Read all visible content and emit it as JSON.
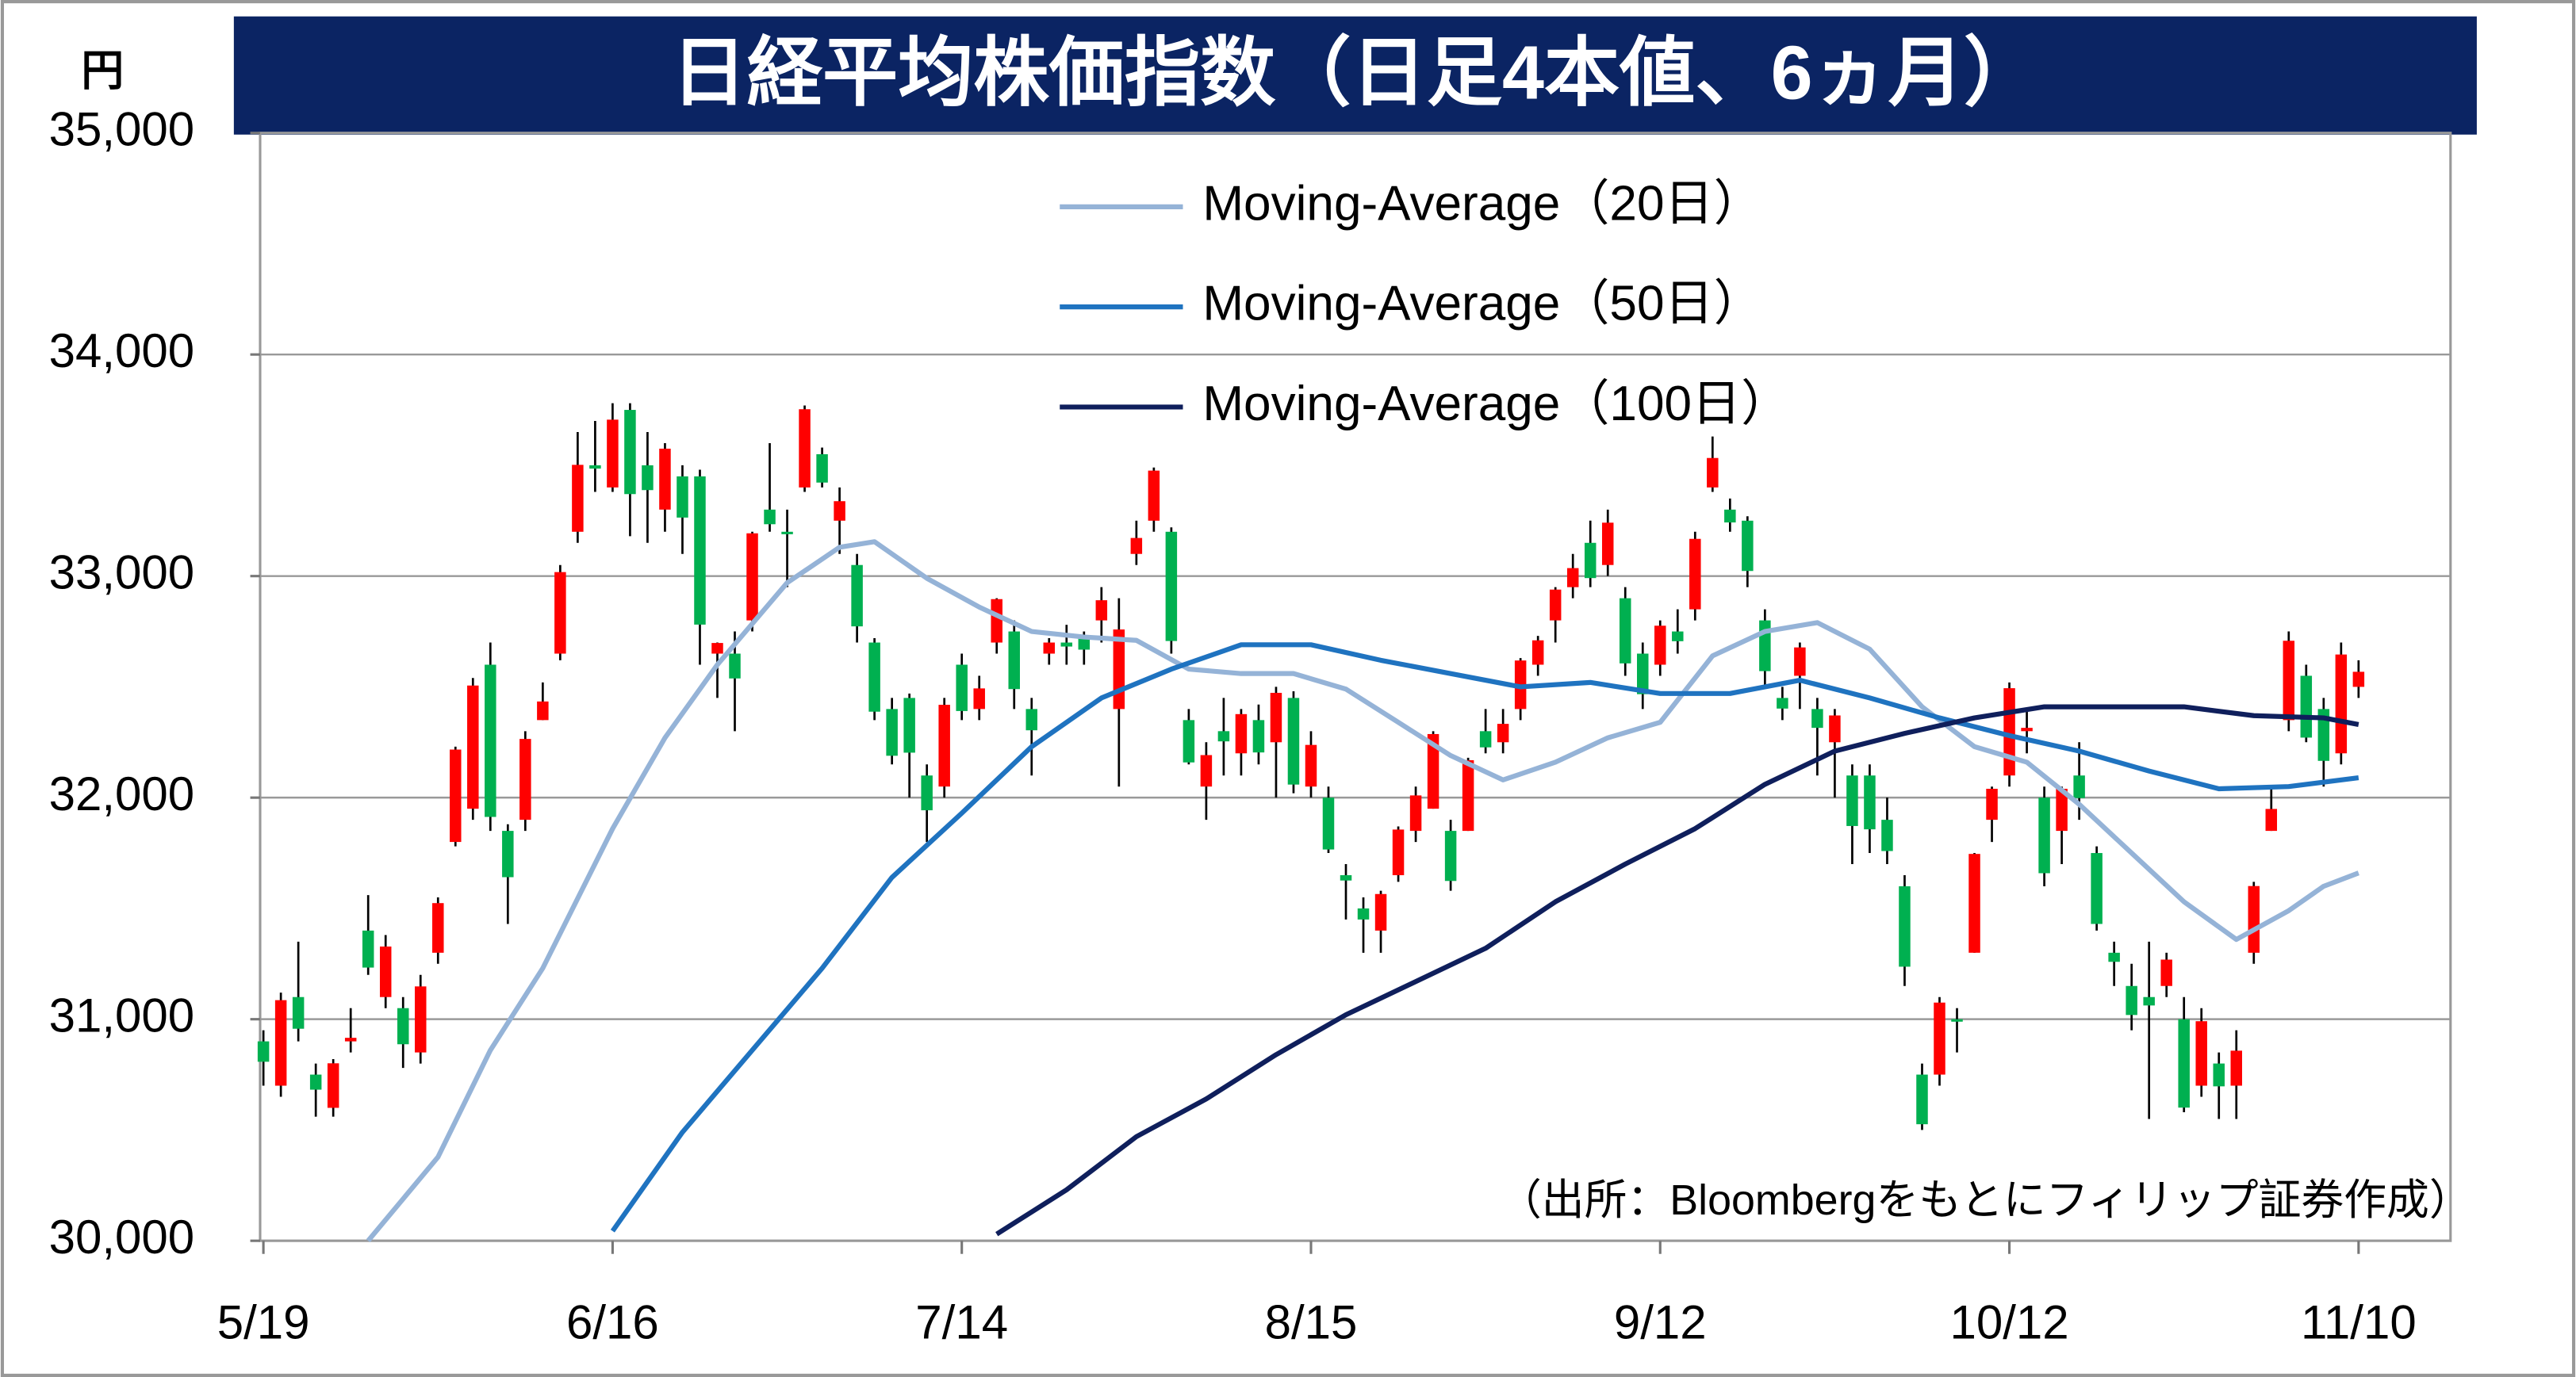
{
  "chart_data": {
    "type": "candlestick",
    "title": "日経平均株価指数（日足4本値、6ヵ月）",
    "unit_label": "円",
    "source": "（出所：Bloombergをもとにフィリップ証券作成）",
    "categories": [
      "5/19",
      null,
      null,
      null,
      null,
      null,
      null,
      null,
      null,
      null,
      null,
      null,
      null,
      null,
      null,
      null,
      null,
      null,
      null,
      null,
      "6/16",
      null,
      null,
      null,
      null,
      null,
      null,
      null,
      null,
      null,
      null,
      null,
      null,
      null,
      null,
      null,
      null,
      null,
      null,
      null,
      "7/14",
      null,
      null,
      null,
      null,
      null,
      null,
      null,
      null,
      null,
      null,
      null,
      null,
      null,
      null,
      null,
      null,
      null,
      null,
      null,
      "8/15",
      null,
      null,
      null,
      null,
      null,
      null,
      null,
      null,
      null,
      null,
      null,
      null,
      null,
      null,
      null,
      null,
      null,
      null,
      null,
      "9/12",
      null,
      null,
      null,
      null,
      null,
      null,
      null,
      null,
      null,
      null,
      null,
      null,
      null,
      null,
      null,
      null,
      null,
      null,
      null,
      "10/12",
      null,
      null,
      null,
      null,
      null,
      null,
      null,
      null,
      null,
      null,
      null,
      null,
      null,
      null,
      null,
      null,
      null,
      null,
      null,
      "11/10"
    ],
    "open": [
      30900,
      30700,
      31100,
      30750,
      30600,
      30900,
      31400,
      31100,
      31050,
      30850,
      31300,
      31800,
      31950,
      32600,
      31850,
      31900,
      32350,
      32650,
      33200,
      33500,
      33400,
      33750,
      33500,
      33300,
      33450,
      33450,
      32650,
      32650,
      32800,
      33300,
      33200,
      33400,
      33550,
      33250,
      33050,
      32700,
      32400,
      32450,
      32100,
      32050,
      32600,
      32400,
      32700,
      32750,
      32400,
      32650,
      32700,
      32720,
      32800,
      32400,
      33100,
      33250,
      33200,
      32350,
      32050,
      32300,
      32200,
      32350,
      32250,
      32450,
      32050,
      32000,
      31650,
      31500,
      31400,
      31650,
      31850,
      31950,
      31850,
      31850,
      32300,
      32250,
      32400,
      32600,
      32800,
      32950,
      33150,
      33050,
      32900,
      32650,
      32600,
      32750,
      32850,
      33400,
      33300,
      33250,
      32800,
      32450,
      32550,
      32400,
      32250,
      32100,
      32100,
      31900,
      31600,
      30750,
      30750,
      31000,
      31300,
      31900,
      32100,
      32300,
      32000,
      31850,
      32100,
      31750,
      31300,
      31150,
      31100,
      31150,
      31000,
      30700,
      30800,
      30700,
      31300,
      31850,
      32350,
      32550,
      32400,
      32200,
      32500
    ],
    "high": [
      30950,
      31120,
      31350,
      30800,
      30820,
      31050,
      31560,
      31380,
      31100,
      31200,
      31550,
      32230,
      32540,
      32700,
      31880,
      32300,
      32520,
      33050,
      33650,
      33700,
      33780,
      33780,
      33650,
      33600,
      33500,
      33480,
      32700,
      32750,
      33200,
      33600,
      33300,
      33770,
      33580,
      33400,
      33100,
      32720,
      32450,
      32470,
      32150,
      32450,
      32650,
      32550,
      32900,
      32800,
      32450,
      32720,
      32780,
      32750,
      32950,
      32900,
      33250,
      33490,
      33220,
      32400,
      32250,
      32450,
      32400,
      32420,
      32500,
      32480,
      32300,
      32050,
      31700,
      31550,
      31580,
      31870,
      32050,
      32300,
      31900,
      32180,
      32400,
      32400,
      32630,
      32730,
      32950,
      33100,
      33250,
      33300,
      32950,
      32700,
      32800,
      32850,
      33200,
      33630,
      33350,
      33270,
      32850,
      32500,
      32700,
      32450,
      32400,
      32150,
      32150,
      32000,
      31650,
      30800,
      31100,
      31050,
      31750,
      32050,
      32520,
      32400,
      32050,
      32050,
      32250,
      31780,
      31350,
      31250,
      31350,
      31300,
      31100,
      31050,
      30850,
      30950,
      31620,
      32050,
      32750,
      32600,
      32450,
      32700,
      32620
    ],
    "low": [
      30700,
      30650,
      30900,
      30560,
      30560,
      30850,
      31200,
      31050,
      30780,
      30800,
      31250,
      31780,
      31900,
      31850,
      31430,
      31850,
      32350,
      32620,
      33150,
      33380,
      33380,
      33180,
      33150,
      33200,
      33100,
      32600,
      32450,
      32300,
      32750,
      33200,
      32950,
      33380,
      33400,
      33100,
      32700,
      32350,
      32150,
      32000,
      31800,
      32000,
      32350,
      32350,
      32650,
      32400,
      32100,
      32600,
      32600,
      32600,
      32700,
      32050,
      33050,
      33200,
      32650,
      32150,
      31900,
      32100,
      32100,
      32150,
      32000,
      32020,
      32000,
      31750,
      31450,
      31300,
      31300,
      31620,
      31800,
      31950,
      31580,
      31850,
      32200,
      32200,
      32350,
      32550,
      32700,
      32900,
      32950,
      33000,
      32550,
      32400,
      32550,
      32650,
      32800,
      33380,
      33200,
      32950,
      32500,
      32350,
      32400,
      32100,
      32000,
      31700,
      31750,
      31700,
      31150,
      30500,
      30700,
      30850,
      31300,
      31800,
      32050,
      32200,
      31600,
      31700,
      31900,
      31400,
      31150,
      30950,
      30550,
      31100,
      30580,
      30650,
      30550,
      30550,
      31250,
      31850,
      32300,
      32250,
      32050,
      32150,
      32450
    ],
    "close": [
      30808,
      31086,
      30957,
      30682,
      30801,
      30916,
      31233,
      31328,
      30887,
      31148,
      31524,
      32217,
      32506,
      31913,
      31641,
      32265,
      32434,
      33018,
      33502,
      33485,
      33706,
      33370,
      33388,
      33575,
      33264,
      32781,
      32698,
      32538,
      33193,
      33234,
      33189,
      33753,
      33422,
      33338,
      32773,
      32388,
      32189,
      32203,
      31943,
      32419,
      32391,
      32493,
      32896,
      32490,
      32304,
      32700,
      32682,
      32668,
      32891,
      32759,
      33172,
      33476,
      32707,
      32159,
      32192,
      32254,
      32377,
      32204,
      32473,
      32059,
      32238,
      31766,
      31626,
      31450,
      31565,
      31856,
      32010,
      32287,
      31624,
      32169,
      32227,
      32333,
      32619,
      32710,
      32939,
      33036,
      32991,
      33241,
      32606,
      32467,
      32776,
      32706,
      33168,
      33533,
      33242,
      33023,
      32571,
      32402,
      32678,
      32315,
      32371,
      31872,
      31857,
      31759,
      31237,
      30526,
      31075,
      30994,
      31746,
      32040,
      32494,
      32315,
      31659,
      32040,
      31998,
      31430,
      31259,
      31019,
      31062,
      31269,
      30601,
      30991,
      30697,
      30858,
      31601,
      31949,
      32708,
      32271,
      32166,
      32646,
      32568
    ],
    "up_color": "#ff0000",
    "down_color": "#00b050",
    "series": [
      {
        "name": "Moving-Average（20日）",
        "color": "#95b3d7",
        "x": [
          6,
          10,
          13,
          16,
          20,
          23,
          26,
          30,
          33,
          35,
          38,
          41,
          44,
          47,
          50,
          53,
          56,
          59,
          62,
          65,
          68,
          71,
          74,
          77,
          80,
          83,
          86,
          89,
          92,
          95,
          98,
          101,
          104,
          107,
          110,
          113,
          116,
          118,
          120
        ],
        "values": [
          30000,
          30378,
          30860,
          31230,
          31860,
          32270,
          32600,
          32970,
          33130,
          33155,
          32990,
          32860,
          32750,
          32725,
          32710,
          32580,
          32560,
          32560,
          32490,
          32340,
          32190,
          32080,
          32160,
          32270,
          32340,
          32640,
          32750,
          32790,
          32670,
          32410,
          32230,
          32160,
          31970,
          31750,
          31530,
          31360,
          31490,
          31600,
          31660
        ]
      },
      {
        "name": "Moving-Average（50日）",
        "color": "#1f73c0",
        "x": [
          20,
          24,
          28,
          32,
          36,
          40,
          44,
          48,
          52,
          56,
          60,
          64,
          68,
          72,
          76,
          80,
          84,
          88,
          92,
          96,
          100,
          104,
          108,
          112,
          116,
          120
        ],
        "values": [
          30044,
          30490,
          30860,
          31230,
          31640,
          31930,
          32230,
          32450,
          32580,
          32690,
          32690,
          32620,
          32560,
          32500,
          32520,
          32470,
          32470,
          32530,
          32450,
          32360,
          32280,
          32210,
          32120,
          32040,
          32050,
          32090
        ]
      },
      {
        "name": "Moving-Average（100日）",
        "color": "#0f1f5c",
        "x": [
          42,
          46,
          50,
          54,
          58,
          62,
          66,
          70,
          74,
          78,
          82,
          86,
          90,
          94,
          98,
          102,
          106,
          110,
          114,
          118,
          120
        ],
        "values": [
          30030,
          30230,
          30470,
          30640,
          30840,
          31020,
          31170,
          31320,
          31530,
          31700,
          31860,
          32060,
          32210,
          32290,
          32360,
          32410,
          32410,
          32410,
          32370,
          32360,
          32330
        ]
      }
    ],
    "ylim": [
      30000,
      35000
    ],
    "yticks": [
      {
        "value": 30000,
        "label": "30,000"
      },
      {
        "value": 31000,
        "label": "31,000"
      },
      {
        "value": 32000,
        "label": "32,000"
      },
      {
        "value": 33000,
        "label": "33,000"
      },
      {
        "value": 34000,
        "label": "34,000"
      },
      {
        "value": 35000,
        "label": "35,000"
      }
    ],
    "grid": true,
    "legend": "top"
  }
}
